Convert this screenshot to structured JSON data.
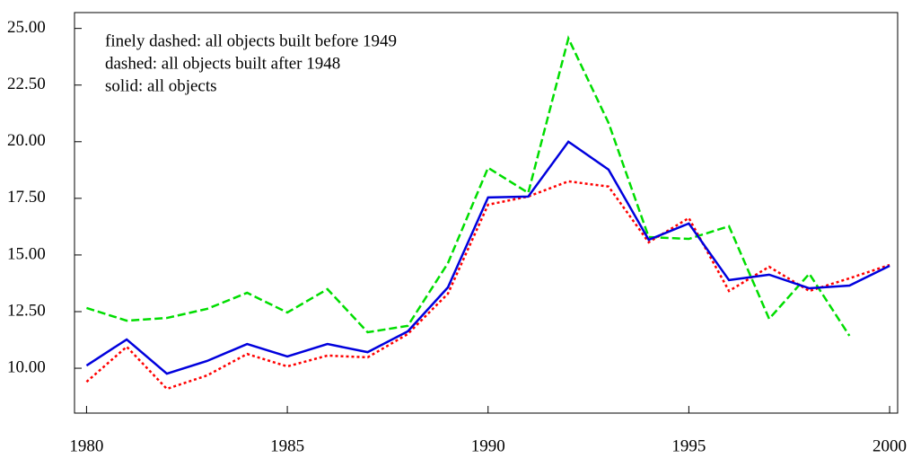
{
  "chart_data": {
    "type": "line",
    "x": [
      1980,
      1981,
      1982,
      1983,
      1984,
      1985,
      1986,
      1987,
      1988,
      1989,
      1990,
      1991,
      1992,
      1993,
      1994,
      1995,
      1996,
      1997,
      1998,
      1999,
      2000
    ],
    "series": [
      {
        "name": "finely dashed: all objects built before 1949",
        "color": "#ff0000",
        "dash": "3,3",
        "values": [
          9.4,
          10.95,
          9.09,
          9.68,
          10.63,
          10.08,
          10.56,
          10.48,
          11.51,
          13.29,
          17.22,
          17.58,
          18.25,
          18.02,
          15.56,
          16.63,
          13.41,
          14.48,
          13.41,
          13.97,
          14.56
        ]
      },
      {
        "name": "dashed: all objects built after 1948",
        "color": "#00dd00",
        "dash": "9,4",
        "values": [
          12.66,
          12.1,
          12.22,
          12.62,
          13.33,
          12.46,
          13.49,
          11.59,
          11.87,
          14.64,
          18.85,
          17.74,
          24.56,
          20.83,
          15.79,
          15.71,
          16.27,
          12.18,
          14.17,
          11.43,
          null
        ]
      },
      {
        "name": "solid: all objects",
        "color": "#0000dd",
        "dash": "none",
        "values": [
          10.12,
          11.27,
          9.76,
          10.32,
          11.07,
          10.52,
          11.07,
          10.71,
          11.63,
          13.57,
          17.54,
          17.58,
          20.0,
          18.77,
          15.67,
          16.39,
          13.89,
          14.13,
          13.53,
          13.65,
          14.52
        ]
      }
    ],
    "xlim": [
      1979.7,
      2000.2
    ],
    "xticks": [
      1980,
      1985,
      1990,
      1995,
      2000
    ],
    "ylim": [
      8.02,
      25.7
    ],
    "yticks": [
      {
        "value": 10,
        "label": "10.00"
      },
      {
        "value": 12.5,
        "label": "12.50"
      },
      {
        "value": 15,
        "label": "15.00"
      },
      {
        "value": 17.5,
        "label": "17.50"
      },
      {
        "value": 20,
        "label": "20.00"
      },
      {
        "value": 22.5,
        "label": "22.50"
      },
      {
        "value": 25,
        "label": "25.00"
      }
    ],
    "legend": "top-left"
  }
}
